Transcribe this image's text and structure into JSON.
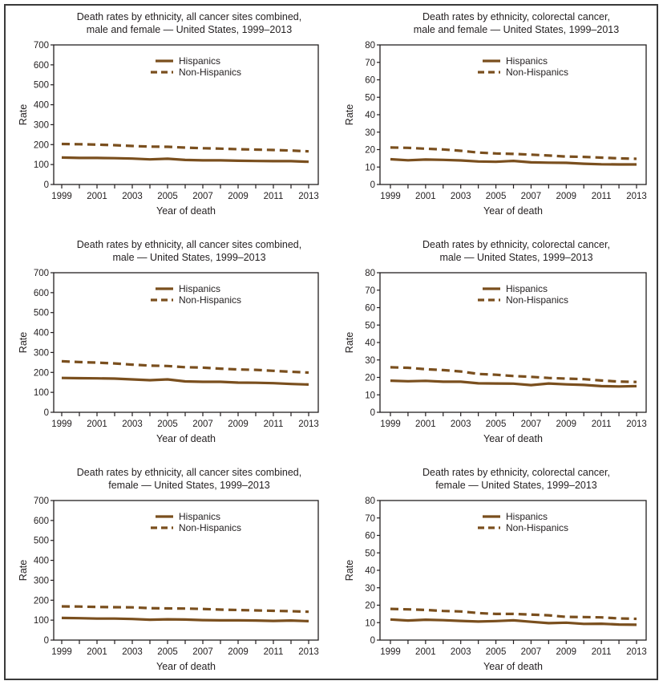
{
  "figure": {
    "legend": [
      "Hispanics",
      "Non-Hispanics"
    ],
    "line_color": "#7a4f1e",
    "axis_color": "#231f20"
  },
  "chart_data": [
    {
      "type": "line",
      "title": "Death rates by ethnicity, all cancer sites combined,",
      "subtitle": "male and female — United States, 1999–2013",
      "xlabel": "Year of death",
      "ylabel": "Rate",
      "ylim": [
        0,
        700
      ],
      "yticks": [
        0,
        100,
        200,
        300,
        400,
        500,
        600,
        700
      ],
      "x": [
        1999,
        2000,
        2001,
        2002,
        2003,
        2004,
        2005,
        2006,
        2007,
        2008,
        2009,
        2010,
        2011,
        2012,
        2013
      ],
      "xtick_labels": [
        "1999",
        "2001",
        "2003",
        "2005",
        "2007",
        "2009",
        "2011",
        "2013"
      ],
      "legend_position": "top-center",
      "grid": false,
      "series": [
        {
          "name": "Hispanics",
          "style": "solid",
          "values": [
            135,
            133,
            133,
            132,
            130,
            126,
            129,
            123,
            121,
            121,
            119,
            118,
            117,
            117,
            114
          ]
        },
        {
          "name": "Non-Hispanics",
          "style": "dashed",
          "values": [
            203,
            202,
            200,
            197,
            193,
            190,
            189,
            185,
            182,
            180,
            177,
            175,
            173,
            170,
            166
          ]
        }
      ]
    },
    {
      "type": "line",
      "title": "Death rates by ethnicity, colorectal cancer,",
      "subtitle": "male and female — United States, 1999–2013",
      "xlabel": "Year of death",
      "ylabel": "Rate",
      "ylim": [
        0,
        80
      ],
      "yticks": [
        0,
        10,
        20,
        30,
        40,
        50,
        60,
        70,
        80
      ],
      "x": [
        1999,
        2000,
        2001,
        2002,
        2003,
        2004,
        2005,
        2006,
        2007,
        2008,
        2009,
        2010,
        2011,
        2012,
        2013
      ],
      "xtick_labels": [
        "1999",
        "2001",
        "2003",
        "2005",
        "2007",
        "2009",
        "2011",
        "2013"
      ],
      "legend_position": "top-center",
      "grid": false,
      "series": [
        {
          "name": "Hispanics",
          "style": "solid",
          "values": [
            14.5,
            13.9,
            14.3,
            14.1,
            13.8,
            13.2,
            13.0,
            13.5,
            12.7,
            12.5,
            12.4,
            11.9,
            11.6,
            11.5,
            11.5
          ]
        },
        {
          "name": "Non-Hispanics",
          "style": "dashed",
          "values": [
            21.2,
            21.0,
            20.5,
            20.1,
            19.3,
            18.3,
            17.8,
            17.5,
            17.1,
            16.6,
            16.0,
            15.8,
            15.4,
            15.0,
            14.7
          ]
        }
      ]
    },
    {
      "type": "line",
      "title": "Death rates by ethnicity, all cancer sites combined,",
      "subtitle": "male — United States, 1999–2013",
      "xlabel": "Year of death",
      "ylabel": "Rate",
      "ylim": [
        0,
        700
      ],
      "yticks": [
        0,
        100,
        200,
        300,
        400,
        500,
        600,
        700
      ],
      "x": [
        1999,
        2000,
        2001,
        2002,
        2003,
        2004,
        2005,
        2006,
        2007,
        2008,
        2009,
        2010,
        2011,
        2012,
        2013
      ],
      "xtick_labels": [
        "1999",
        "2001",
        "2003",
        "2005",
        "2007",
        "2009",
        "2011",
        "2013"
      ],
      "legend_position": "top-center",
      "grid": false,
      "series": [
        {
          "name": "Hispanics",
          "style": "solid",
          "values": [
            172,
            171,
            170,
            169,
            165,
            161,
            165,
            155,
            153,
            153,
            149,
            148,
            146,
            142,
            139
          ]
        },
        {
          "name": "Non-Hispanics",
          "style": "dashed",
          "values": [
            256,
            252,
            249,
            245,
            239,
            234,
            232,
            226,
            224,
            219,
            215,
            213,
            208,
            203,
            199
          ]
        }
      ]
    },
    {
      "type": "line",
      "title": "Death rates by ethnicity, colorectal cancer,",
      "subtitle": "male — United States, 1999–2013",
      "xlabel": "Year of death",
      "ylabel": "Rate",
      "ylim": [
        0,
        80
      ],
      "yticks": [
        0,
        10,
        20,
        30,
        40,
        50,
        60,
        70,
        80
      ],
      "x": [
        1999,
        2000,
        2001,
        2002,
        2003,
        2004,
        2005,
        2006,
        2007,
        2008,
        2009,
        2010,
        2011,
        2012,
        2013
      ],
      "xtick_labels": [
        "1999",
        "2001",
        "2003",
        "2005",
        "2007",
        "2009",
        "2011",
        "2013"
      ],
      "legend_position": "top-center",
      "grid": false,
      "series": [
        {
          "name": "Hispanics",
          "style": "solid",
          "values": [
            18.1,
            17.8,
            18.0,
            17.5,
            17.5,
            16.6,
            16.5,
            16.4,
            15.6,
            16.5,
            16.0,
            15.7,
            15.0,
            14.8,
            15.0
          ]
        },
        {
          "name": "Non-Hispanics",
          "style": "dashed",
          "values": [
            25.8,
            25.5,
            24.7,
            24.2,
            23.4,
            22.0,
            21.5,
            20.8,
            20.3,
            19.7,
            19.3,
            19.0,
            18.2,
            17.6,
            17.4
          ]
        }
      ]
    },
    {
      "type": "line",
      "title": "Death rates by ethnicity, all cancer sites combined,",
      "subtitle": "female — United States, 1999–2013",
      "xlabel": "Year of death",
      "ylabel": "Rate",
      "ylim": [
        0,
        700
      ],
      "yticks": [
        0,
        100,
        200,
        300,
        400,
        500,
        600,
        700
      ],
      "x": [
        1999,
        2000,
        2001,
        2002,
        2003,
        2004,
        2005,
        2006,
        2007,
        2008,
        2009,
        2010,
        2011,
        2012,
        2013
      ],
      "xtick_labels": [
        "1999",
        "2001",
        "2003",
        "2005",
        "2007",
        "2009",
        "2011",
        "2013"
      ],
      "legend_position": "top-center",
      "grid": false,
      "series": [
        {
          "name": "Hispanics",
          "style": "solid",
          "values": [
            111,
            110,
            108,
            108,
            106,
            102,
            104,
            103,
            100,
            99,
            99,
            98,
            96,
            98,
            95
          ]
        },
        {
          "name": "Non-Hispanics",
          "style": "dashed",
          "values": [
            169,
            168,
            166,
            165,
            164,
            160,
            159,
            158,
            156,
            153,
            151,
            149,
            147,
            145,
            142
          ]
        }
      ]
    },
    {
      "type": "line",
      "title": "Death rates by ethnicity, colorectal cancer,",
      "subtitle": "female — United States, 1999–2013",
      "xlabel": "Year of death",
      "ylabel": "Rate",
      "ylim": [
        0,
        80
      ],
      "yticks": [
        0,
        10,
        20,
        30,
        40,
        50,
        60,
        70,
        80
      ],
      "x": [
        1999,
        2000,
        2001,
        2002,
        2003,
        2004,
        2005,
        2006,
        2007,
        2008,
        2009,
        2010,
        2011,
        2012,
        2013
      ],
      "xtick_labels": [
        "1999",
        "2001",
        "2003",
        "2005",
        "2007",
        "2009",
        "2011",
        "2013"
      ],
      "legend_position": "top-center",
      "grid": false,
      "series": [
        {
          "name": "Hispanics",
          "style": "solid",
          "values": [
            11.8,
            11.2,
            11.7,
            11.4,
            11.0,
            10.6,
            10.9,
            11.3,
            10.5,
            9.7,
            10.0,
            9.3,
            9.4,
            8.9,
            8.8
          ]
        },
        {
          "name": "Non-Hispanics",
          "style": "dashed",
          "values": [
            17.9,
            17.6,
            17.3,
            16.7,
            16.4,
            15.5,
            15.0,
            15.0,
            14.6,
            14.2,
            13.3,
            13.2,
            13.0,
            12.4,
            12.2
          ]
        }
      ]
    }
  ]
}
